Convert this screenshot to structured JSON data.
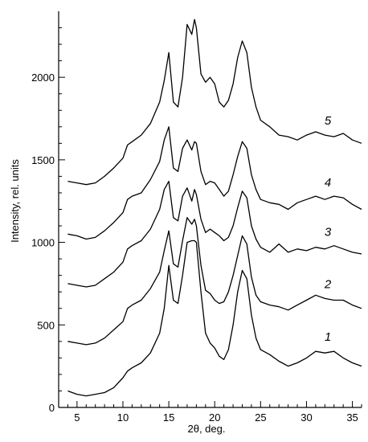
{
  "chart_data": {
    "type": "line",
    "title": "",
    "xlabel": "2θ, deg.",
    "ylabel": "Intensity, rel. units",
    "xlim": [
      3,
      36
    ],
    "ylim": [
      0,
      2400
    ],
    "xticks": [
      5,
      10,
      15,
      20,
      25,
      30,
      35
    ],
    "yticks": [
      0,
      500,
      1000,
      1500,
      2000
    ],
    "grid": false,
    "legend": "none",
    "colors": {
      "curve": "#000000",
      "axis": "#000000"
    },
    "series": [
      {
        "label": "1",
        "x": [
          4,
          5,
          6,
          7,
          8,
          9,
          10,
          10.5,
          11,
          12,
          13,
          14,
          14.5,
          15,
          15.5,
          16,
          16.5,
          17,
          17.5,
          17.8,
          18,
          18.5,
          19,
          19.5,
          20,
          20.5,
          21,
          21.5,
          22,
          22.5,
          23,
          23.5,
          24,
          24.5,
          25,
          26,
          27,
          28,
          29,
          30,
          31,
          32,
          33,
          34,
          35,
          36
        ],
        "y": [
          100,
          80,
          70,
          80,
          90,
          120,
          180,
          220,
          240,
          270,
          330,
          450,
          600,
          860,
          650,
          630,
          800,
          1000,
          1010,
          1010,
          1000,
          700,
          450,
          390,
          360,
          310,
          290,
          350,
          500,
          700,
          830,
          780,
          560,
          420,
          350,
          320,
          280,
          250,
          270,
          300,
          340,
          330,
          340,
          300,
          270,
          250
        ]
      },
      {
        "label": "2",
        "x": [
          4,
          5,
          6,
          7,
          8,
          9,
          10,
          10.5,
          11,
          12,
          13,
          14,
          14.5,
          15,
          15.5,
          16,
          16.5,
          17,
          17.5,
          17.8,
          18,
          18.5,
          19,
          19.5,
          20,
          20.5,
          21,
          21.5,
          22,
          22.5,
          23,
          23.5,
          24,
          24.5,
          25,
          26,
          27,
          28,
          29,
          30,
          31,
          32,
          33,
          34,
          35,
          36
        ],
        "y": [
          400,
          390,
          380,
          390,
          420,
          470,
          520,
          600,
          620,
          650,
          720,
          820,
          950,
          1070,
          870,
          850,
          1010,
          1150,
          1110,
          1140,
          1100,
          860,
          710,
          690,
          650,
          630,
          640,
          700,
          800,
          920,
          1040,
          990,
          790,
          680,
          640,
          620,
          610,
          590,
          620,
          650,
          680,
          660,
          650,
          650,
          620,
          600
        ]
      },
      {
        "label": "3",
        "x": [
          4,
          5,
          6,
          7,
          8,
          9,
          10,
          10.5,
          11,
          12,
          13,
          14,
          14.5,
          15,
          15.5,
          16,
          16.5,
          17,
          17.5,
          17.8,
          18,
          18.5,
          19,
          19.5,
          20,
          20.5,
          21,
          21.5,
          22,
          22.5,
          23,
          23.5,
          24,
          24.5,
          25,
          26,
          27,
          28,
          29,
          30,
          31,
          32,
          33,
          34,
          35,
          36
        ],
        "y": [
          750,
          740,
          730,
          740,
          780,
          820,
          880,
          960,
          980,
          1010,
          1080,
          1200,
          1320,
          1370,
          1150,
          1130,
          1280,
          1330,
          1250,
          1320,
          1290,
          1140,
          1060,
          1080,
          1060,
          1040,
          1010,
          1030,
          1100,
          1210,
          1310,
          1270,
          1100,
          1020,
          970,
          940,
          990,
          940,
          960,
          950,
          970,
          960,
          980,
          960,
          940,
          930
        ]
      },
      {
        "label": "4",
        "x": [
          4,
          5,
          6,
          7,
          8,
          9,
          10,
          10.5,
          11,
          12,
          13,
          14,
          14.5,
          15,
          15.5,
          16,
          16.5,
          17,
          17.5,
          17.8,
          18,
          18.5,
          19,
          19.5,
          20,
          20.5,
          21,
          21.5,
          22,
          22.5,
          23,
          23.5,
          24,
          24.5,
          25,
          26,
          27,
          28,
          29,
          30,
          31,
          32,
          33,
          34,
          35,
          36
        ],
        "y": [
          1050,
          1040,
          1020,
          1030,
          1070,
          1120,
          1180,
          1260,
          1280,
          1300,
          1380,
          1490,
          1620,
          1700,
          1450,
          1430,
          1570,
          1620,
          1560,
          1610,
          1600,
          1430,
          1350,
          1370,
          1360,
          1320,
          1280,
          1310,
          1410,
          1520,
          1610,
          1570,
          1410,
          1320,
          1260,
          1240,
          1230,
          1200,
          1240,
          1260,
          1280,
          1260,
          1280,
          1270,
          1230,
          1200
        ]
      },
      {
        "label": "5",
        "x": [
          4,
          5,
          6,
          7,
          8,
          9,
          10,
          10.5,
          11,
          12,
          13,
          14,
          14.5,
          15,
          15.5,
          16,
          16.5,
          17,
          17.5,
          17.8,
          18,
          18.5,
          19,
          19.5,
          20,
          20.5,
          21,
          21.5,
          22,
          22.5,
          23,
          23.5,
          24,
          24.5,
          25,
          26,
          27,
          28,
          29,
          30,
          31,
          32,
          33,
          34,
          35,
          36
        ],
        "y": [
          1370,
          1360,
          1350,
          1360,
          1400,
          1450,
          1510,
          1590,
          1610,
          1650,
          1720,
          1850,
          1980,
          2150,
          1850,
          1820,
          2000,
          2320,
          2260,
          2350,
          2300,
          2020,
          1970,
          2000,
          1960,
          1850,
          1820,
          1860,
          1960,
          2120,
          2220,
          2150,
          1940,
          1820,
          1740,
          1700,
          1650,
          1640,
          1620,
          1650,
          1670,
          1650,
          1640,
          1660,
          1620,
          1600
        ]
      }
    ]
  }
}
